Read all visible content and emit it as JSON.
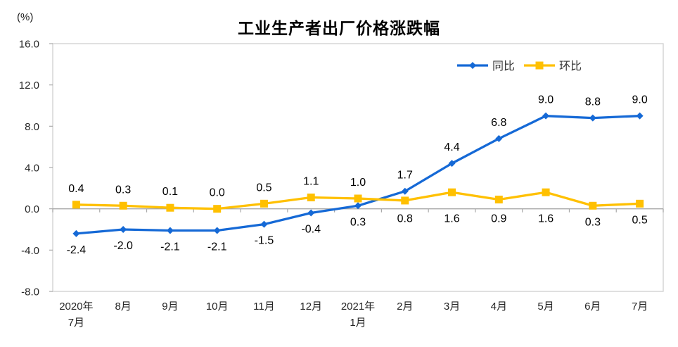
{
  "chart_data": {
    "type": "line",
    "title": "工业生产者出厂价格涨跌幅",
    "unit_label": "(%)",
    "categories": [
      [
        "2020年",
        "7月"
      ],
      [
        "8月"
      ],
      [
        "9月"
      ],
      [
        "10月"
      ],
      [
        "11月"
      ],
      [
        "12月"
      ],
      [
        "2021年",
        "1月"
      ],
      [
        "2月"
      ],
      [
        "3月"
      ],
      [
        "4月"
      ],
      [
        "5月"
      ],
      [
        "6月"
      ],
      [
        "7月"
      ]
    ],
    "series": [
      {
        "name": "同比",
        "color": "#1569d6",
        "marker": "diamond",
        "values": [
          -2.4,
          -2.0,
          -2.1,
          -2.1,
          -1.5,
          -0.4,
          0.3,
          1.7,
          4.4,
          6.8,
          9.0,
          8.8,
          9.0
        ],
        "labels": [
          "-2.4",
          "-2.0",
          "-2.1",
          "-2.1",
          "-1.5",
          "-0.4",
          "0.3",
          "1.7",
          "4.4",
          "6.8",
          "9.0",
          "8.8",
          "9.0"
        ],
        "label_side": [
          "below",
          "below",
          "below",
          "below",
          "below",
          "below",
          "below",
          "above",
          "above",
          "above",
          "above",
          "above",
          "above"
        ]
      },
      {
        "name": "环比",
        "color": "#ffc000",
        "marker": "square",
        "values": [
          0.4,
          0.3,
          0.1,
          0.0,
          0.5,
          1.1,
          1.0,
          0.8,
          1.6,
          0.9,
          1.6,
          0.3,
          0.5
        ],
        "labels": [
          "0.4",
          "0.3",
          "0.1",
          "0.0",
          "0.5",
          "1.1",
          "1.0",
          "0.8",
          "1.6",
          "0.9",
          "1.6",
          "0.3",
          "0.5"
        ],
        "label_side": [
          "above",
          "above",
          "above",
          "above",
          "above",
          "above",
          "above",
          "below",
          "below",
          "below",
          "below",
          "below",
          "below"
        ]
      }
    ],
    "ylim": [
      -8.0,
      16.0
    ],
    "ytick_interval": 4.0,
    "yticks": [
      16.0,
      12.0,
      8.0,
      4.0,
      0.0,
      -4.0,
      -8.0
    ],
    "ytick_labels": [
      "16.0",
      "12.0",
      "8.0",
      "4.0",
      "0.0",
      "-4.0",
      "-8.0"
    ],
    "grid": "off",
    "legend_position": "top-right-inside",
    "colors": {
      "plot_border": "#cfcfcf",
      "zero_line": "#a8a8a8",
      "tick": "#a8a8a8",
      "title_text": "#000000",
      "data_label_text": "#000000",
      "axis_text": "#262626",
      "legend_text": "#333333",
      "background": "#ffffff"
    }
  }
}
